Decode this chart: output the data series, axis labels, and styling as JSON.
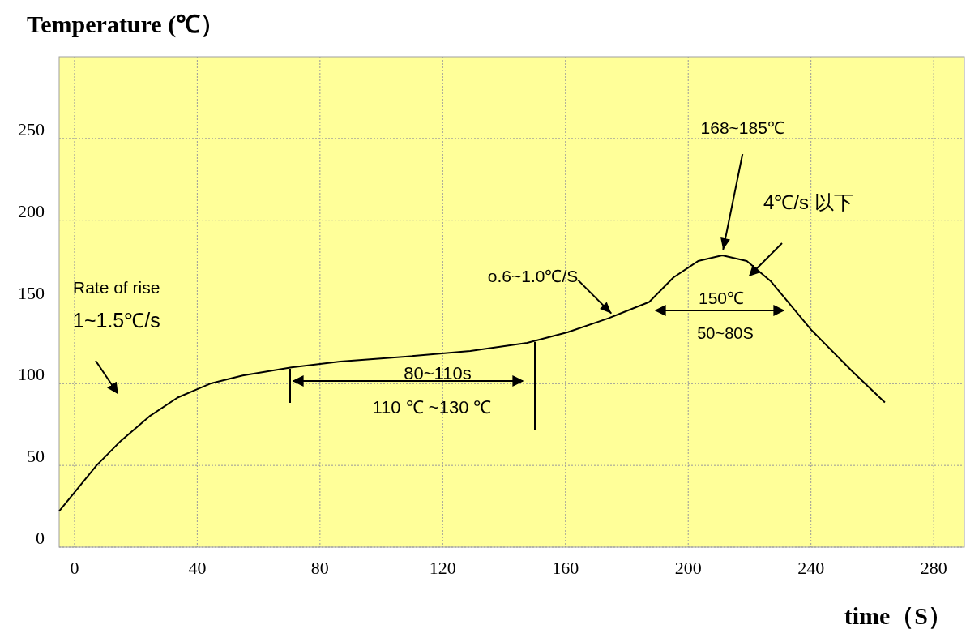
{
  "chart_data": {
    "type": "line",
    "ylabel": "Temperature (℃）",
    "xlabel": "time（S）",
    "x": [
      -5,
      7.2,
      15.1,
      24.4,
      33.6,
      44.2,
      54.8,
      70.7,
      86.6,
      107.8,
      129,
      147.5,
      160.8,
      174,
      187.3,
      195.2,
      203.2,
      211.1,
      219.1,
      227,
      240.3,
      253.5,
      264.1
    ],
    "series": [
      {
        "color": "#000000",
        "values": [
          22,
          50,
          65,
          80,
          91.5,
          100,
          105,
          110,
          113.5,
          116.5,
          120,
          125,
          131.5,
          140,
          150,
          165,
          175,
          178.5,
          175,
          162.5,
          132.5,
          107.5,
          88.5
        ]
      }
    ],
    "xlim": [
      -5,
      290
    ],
    "ylim": [
      0,
      300
    ],
    "xticks": [
      0,
      40,
      80,
      120,
      160,
      200,
      240,
      280
    ],
    "yticks": [
      0,
      50,
      100,
      150,
      200,
      250
    ],
    "grid": true,
    "annotations": [
      "Rate of rise",
      "1~1.5℃/s",
      "80~110s",
      "110 ℃ ~130 ℃",
      {
        "text": "o.6~1.0℃/S",
        "x": 176,
        "y": 141
      },
      {
        "text": "168~185℃",
        "x": 211.1,
        "y": 178.5
      },
      "4℃/s 以下",
      "150℃",
      "50~80S"
    ]
  }
}
